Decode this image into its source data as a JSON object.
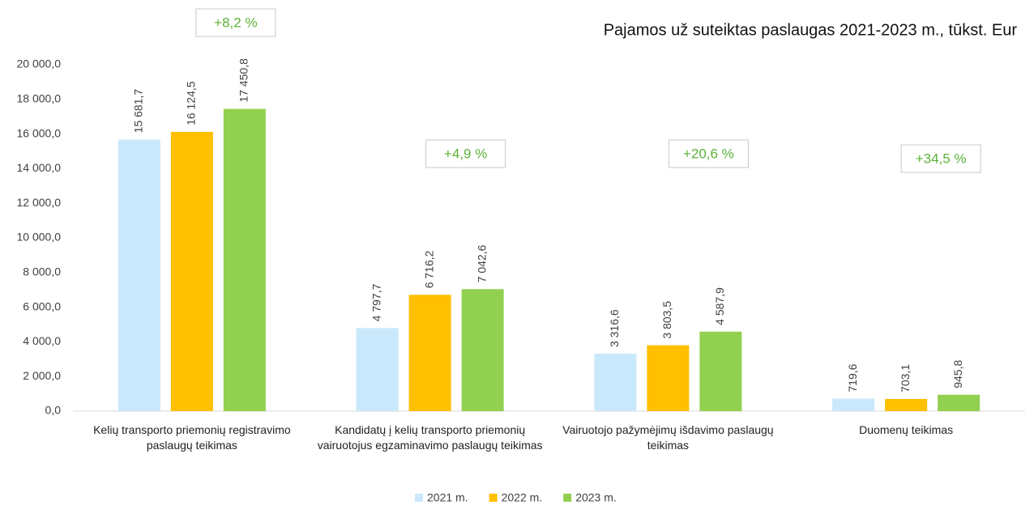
{
  "chart_data": {
    "type": "bar",
    "title": "Pajamos už suteiktas paslaugas 2021-2023 m., tūkst. Eur",
    "categories": [
      "Kelių transporto priemonių registravimo paslaugų teikimas",
      "Kandidatų į kelių transporto priemonių vairuotojus egzaminavimo paslaugų teikimas",
      "Vairuotojo pažymėjimų išdavimo paslaugų teikimas",
      "Duomenų teikimas"
    ],
    "series": [
      {
        "name": "2021 m.",
        "color": "#c9e8fb",
        "values": [
          15681.7,
          4797.7,
          3316.6,
          719.6
        ],
        "value_labels": [
          "15 681,7",
          "4 797,7",
          "3 316,6",
          "719,6"
        ]
      },
      {
        "name": "2022 m.",
        "color": "#ffc000",
        "values": [
          16124.5,
          6716.2,
          3803.5,
          703.1
        ],
        "value_labels": [
          "16 124,5",
          "6 716,2",
          "3 803,5",
          "703,1"
        ]
      },
      {
        "name": "2023 m.",
        "color": "#92d050",
        "values": [
          17450.8,
          7042.6,
          4587.9,
          945.8
        ],
        "value_labels": [
          "17 450,8",
          "7 042,6",
          "4 587,9",
          "945,8"
        ]
      }
    ],
    "annotations": [
      "+8,2 %",
      "+4,9 %",
      "+20,6 %",
      "+34,5 %"
    ],
    "ylim": [
      0,
      20000
    ],
    "yticks": [
      {
        "value": 0,
        "label": "0,0"
      },
      {
        "value": 2000,
        "label": "2 000,0"
      },
      {
        "value": 4000,
        "label": "4 000,0"
      },
      {
        "value": 6000,
        "label": "6 000,0"
      },
      {
        "value": 8000,
        "label": "8 000,0"
      },
      {
        "value": 10000,
        "label": "10 000,0"
      },
      {
        "value": 12000,
        "label": "12 000,0"
      },
      {
        "value": 14000,
        "label": "14 000,0"
      },
      {
        "value": 16000,
        "label": "16 000,0"
      },
      {
        "value": 18000,
        "label": "18 000,0"
      },
      {
        "value": 20000,
        "label": "20 000,0"
      }
    ],
    "grid": false,
    "legend": "bottom"
  }
}
